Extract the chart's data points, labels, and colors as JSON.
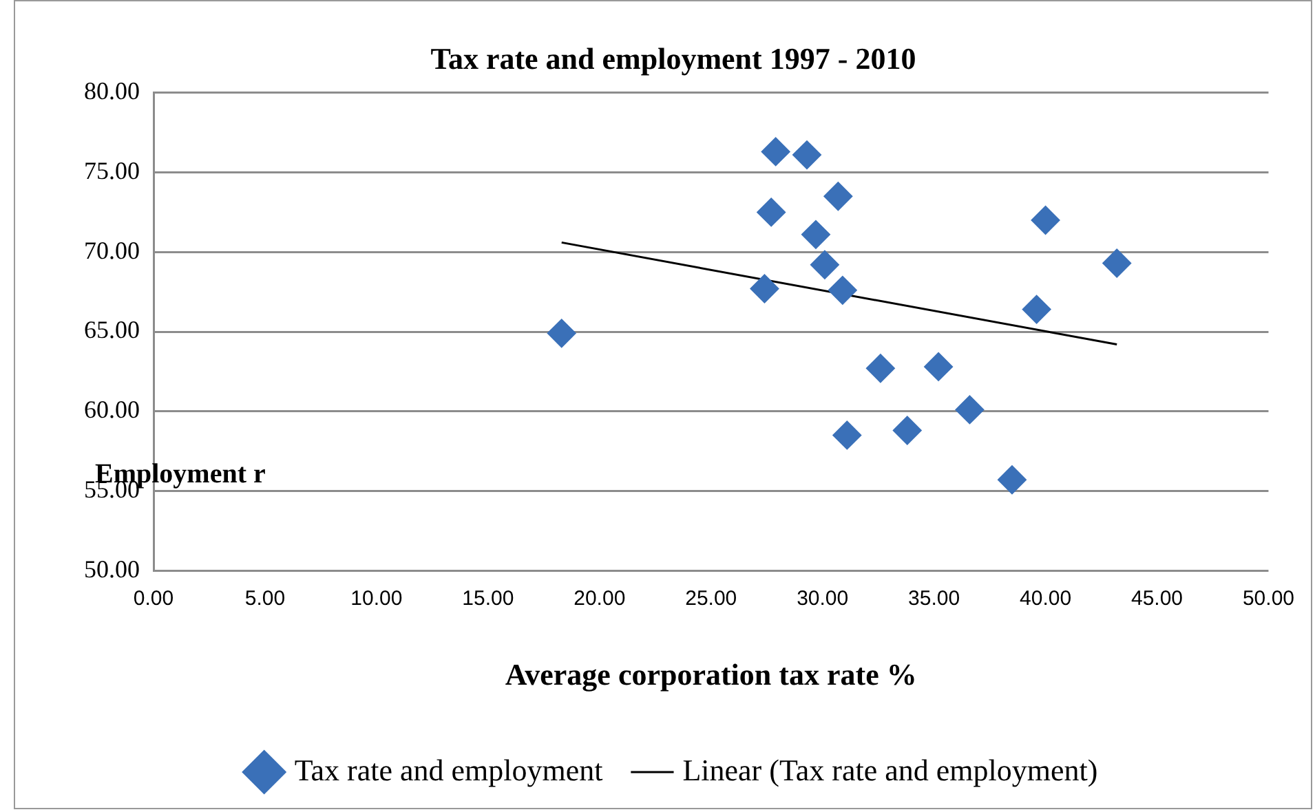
{
  "chart_data": {
    "type": "scatter",
    "title": "Tax rate and employment 1997 - 2010",
    "xlabel": "Average corporation tax rate %",
    "ylabel": "Employment r",
    "xlim": [
      0,
      50
    ],
    "xticks": [
      {
        "value": 0,
        "label": "0.00"
      },
      {
        "value": 5,
        "label": "5.00"
      },
      {
        "value": 10,
        "label": "10.00"
      },
      {
        "value": 15,
        "label": "15.00"
      },
      {
        "value": 20,
        "label": "20.00"
      },
      {
        "value": 25,
        "label": "25.00"
      },
      {
        "value": 30,
        "label": "30.00"
      },
      {
        "value": 35,
        "label": "35.00"
      },
      {
        "value": 40,
        "label": "40.00"
      },
      {
        "value": 45,
        "label": "45.00"
      },
      {
        "value": 50,
        "label": "50.00"
      }
    ],
    "ylim": [
      50,
      80
    ],
    "yticks": [
      {
        "value": 50,
        "label": "50.00"
      },
      {
        "value": 55,
        "label": "55.00"
      },
      {
        "value": 60,
        "label": "60.00"
      },
      {
        "value": 65,
        "label": "65.00"
      },
      {
        "value": 70,
        "label": "70.00"
      },
      {
        "value": 75,
        "label": "75.00"
      },
      {
        "value": 80,
        "label": "80.00"
      }
    ],
    "grid": "y",
    "legend": "bottom",
    "marker": "diamond",
    "series": [
      {
        "name": "Tax rate and employment",
        "color": "#3a70b8",
        "x": [
          18.3,
          27.9,
          29.3,
          30.7,
          27.7,
          29.7,
          30.1,
          27.4,
          30.9,
          32.6,
          35.2,
          36.6,
          31.1,
          33.8,
          38.5,
          39.6,
          40.0,
          43.2
        ],
        "values": [
          64.9,
          76.3,
          76.1,
          73.5,
          72.5,
          71.1,
          69.2,
          67.7,
          67.6,
          62.7,
          62.8,
          60.1,
          58.5,
          58.8,
          55.7,
          66.4,
          72.0,
          69.3
        ]
      },
      {
        "name": "Linear (Tax rate and employment)",
        "type": "line",
        "color": "#000000",
        "marker": "none",
        "x": [
          18.3,
          43.2
        ],
        "values": [
          70.6,
          64.2
        ]
      }
    ]
  }
}
